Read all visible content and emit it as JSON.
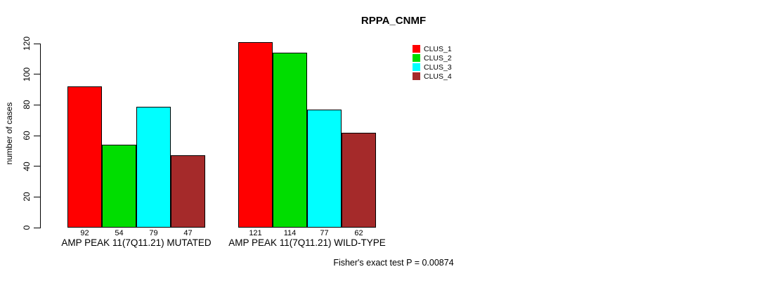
{
  "page": {
    "background": "#ffffff"
  },
  "chart_data": {
    "type": "bar",
    "title": "RPPA_CNMF",
    "ylabel": "number of cases",
    "note": "Fisher's exact test P = 0.00874",
    "ylim": [
      0,
      120
    ],
    "yticks": [
      0,
      20,
      40,
      60,
      80,
      100,
      120
    ],
    "grid": false,
    "legend_position": "top-right",
    "series": [
      {
        "name": "CLUS_1",
        "color": "#FF0000"
      },
      {
        "name": "CLUS_2",
        "color": "#00DD00"
      },
      {
        "name": "CLUS_3",
        "color": "#00FFFF"
      },
      {
        "name": "CLUS_4",
        "color": "#A52A2A"
      }
    ],
    "groups": [
      {
        "label": "AMP PEAK 11(7Q11.21) MUTATED",
        "values": [
          92,
          54,
          79,
          47
        ]
      },
      {
        "label": "AMP PEAK 11(7Q11.21) WILD-TYPE",
        "values": [
          121,
          114,
          77,
          62
        ]
      }
    ]
  }
}
